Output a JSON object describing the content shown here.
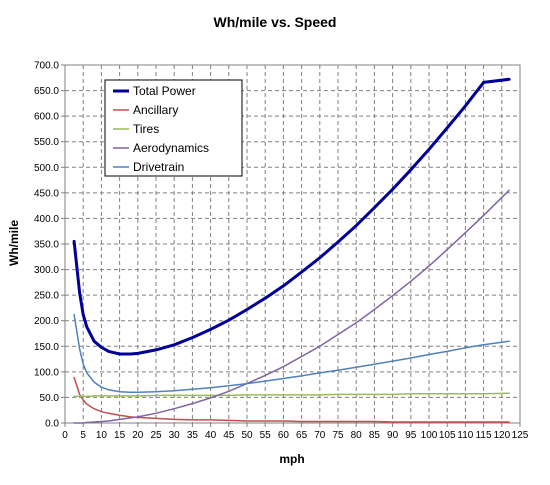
{
  "chart_data": {
    "type": "line",
    "title": "Wh/mile vs. Speed",
    "xlabel": "mph",
    "ylabel": "Wh/mile",
    "xlim": [
      0,
      125
    ],
    "ylim": [
      0,
      700
    ],
    "x_ticks": [
      0,
      5,
      10,
      15,
      20,
      25,
      30,
      35,
      40,
      45,
      50,
      55,
      60,
      65,
      70,
      75,
      80,
      85,
      90,
      95,
      100,
      105,
      110,
      115,
      120,
      125
    ],
    "y_ticks": [
      0,
      50,
      100,
      150,
      200,
      250,
      300,
      350,
      400,
      450,
      500,
      550,
      600,
      650,
      700
    ],
    "y_tick_format": "0.0",
    "grid": true,
    "legend_position": "top-left",
    "x": [
      2.5,
      4,
      5,
      6,
      8,
      10,
      12,
      15,
      18,
      20,
      25,
      30,
      35,
      40,
      45,
      50,
      55,
      60,
      65,
      70,
      75,
      80,
      85,
      90,
      95,
      100,
      105,
      110,
      115,
      122
    ],
    "series": [
      {
        "name": "Total Power",
        "color": "#000099",
        "width": 3,
        "values": [
          355,
          255,
          212,
          188,
          160,
          148,
          140,
          135,
          135,
          136,
          143,
          153,
          167,
          183,
          201,
          222,
          244,
          268,
          295,
          323,
          354,
          386,
          421,
          457,
          495,
          535,
          577,
          620,
          666,
          672
        ]
      },
      {
        "name": "Ancillary",
        "color": "#c0504d",
        "width": 1.5,
        "values": [
          89,
          56,
          45,
          37,
          28,
          22,
          19,
          15,
          12,
          11,
          9,
          7,
          6,
          6,
          5,
          4,
          4,
          4,
          3,
          3,
          3,
          3,
          3,
          2,
          2,
          2,
          2,
          2,
          2,
          2
        ]
      },
      {
        "name": "Tires",
        "color": "#9bbb59",
        "width": 1.5,
        "values": [
          52,
          52,
          52,
          52,
          53,
          53,
          53,
          53,
          53,
          53,
          54,
          54,
          54,
          54,
          54,
          55,
          55,
          55,
          55,
          55,
          56,
          56,
          56,
          56,
          57,
          57,
          57,
          57,
          57,
          58
        ]
      },
      {
        "name": "Aerodynamics",
        "color": "#8064a2",
        "width": 1.5,
        "values": [
          0,
          0,
          0,
          1,
          2,
          3,
          4,
          7,
          10,
          12,
          19,
          28,
          38,
          49,
          62,
          77,
          93,
          110,
          130,
          150,
          173,
          196,
          222,
          249,
          277,
          307,
          339,
          372,
          406,
          455
        ]
      },
      {
        "name": "Drivetrain",
        "color": "#4f81bd",
        "width": 1.5,
        "values": [
          212,
          145,
          115,
          98,
          80,
          70,
          65,
          61,
          60,
          60,
          61,
          63,
          66,
          69,
          73,
          77,
          82,
          87,
          92,
          98,
          103,
          109,
          115,
          121,
          127,
          134,
          140,
          147,
          153,
          160
        ]
      }
    ]
  }
}
